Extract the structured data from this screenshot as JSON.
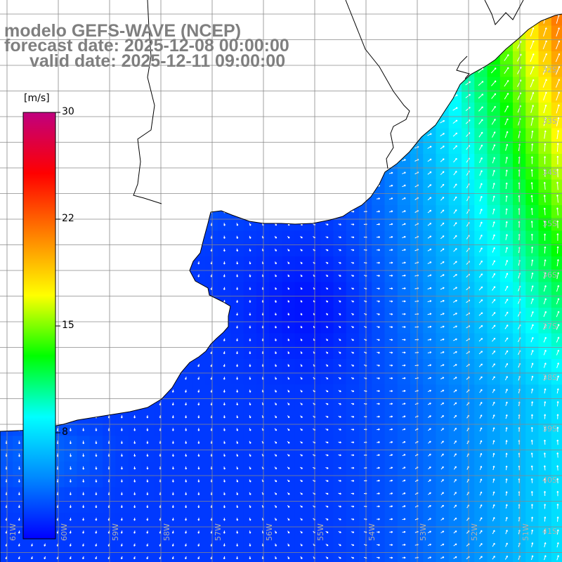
{
  "title": {
    "line1": "modelo GEFS-WAVE (NCEP)",
    "line2": "forecast date: 2025-12-08 00:00:00",
    "line3": "valid date: 2025-12-11 09:00:00"
  },
  "colorbar": {
    "unit": "[m/s]",
    "ticks": [
      "30",
      "22",
      "15",
      "8"
    ],
    "stops": [
      "#0000ff",
      "#0088ff",
      "#00ffff",
      "#00ff00",
      "#ffff00",
      "#ff8000",
      "#ff0000",
      "#c0007f"
    ]
  },
  "lat_labels": [
    "32S",
    "33S",
    "34S",
    "35S",
    "36S",
    "37S",
    "38S",
    "39S",
    "40S",
    "41S"
  ],
  "lon_labels": [
    "61W",
    "60W",
    "59W",
    "58W",
    "57W",
    "56W",
    "55W",
    "54W",
    "53W",
    "52W",
    "51W"
  ],
  "colors": {
    "land": "#ffffff",
    "coast": "#000000",
    "grid": "#8a8a8a",
    "title": "#7f7f7f",
    "arrow": "#ffffff"
  }
}
